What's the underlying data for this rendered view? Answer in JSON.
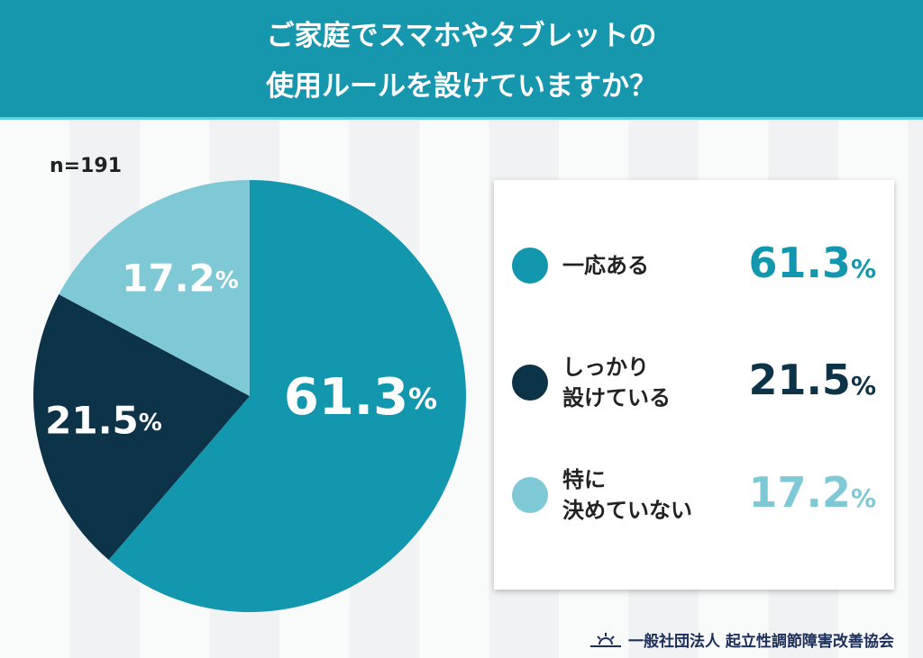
{
  "title_lines": [
    "ご家庭でスマホやタブレットの",
    "使用ルールを設けていますか？"
  ],
  "sample": "n=191",
  "chart_data": {
    "type": "pie",
    "title": "ご家庭でスマホやタブレットの使用ルールを設けていますか？",
    "unit": "%",
    "start": "12 o'clock, clockwise",
    "slices": [
      {
        "label": "一応ある",
        "label_lines": [
          "一応ある"
        ],
        "value": 61.3,
        "display": "61.3",
        "color": "#1397ae"
      },
      {
        "label": "しっかり設けている",
        "label_lines": [
          "しっかり",
          "設けている"
        ],
        "value": 21.5,
        "display": "21.5",
        "color": "#0c3347"
      },
      {
        "label": "特に決めていない",
        "label_lines": [
          "特に",
          "決めていない"
        ],
        "value": 17.2,
        "display": "17.2",
        "color": "#7fc9d7"
      }
    ],
    "legend": "right"
  },
  "footer": {
    "org": "一般社団法人 起立性調節障害改善協会",
    "logo_icon": "sunrise-icon"
  }
}
